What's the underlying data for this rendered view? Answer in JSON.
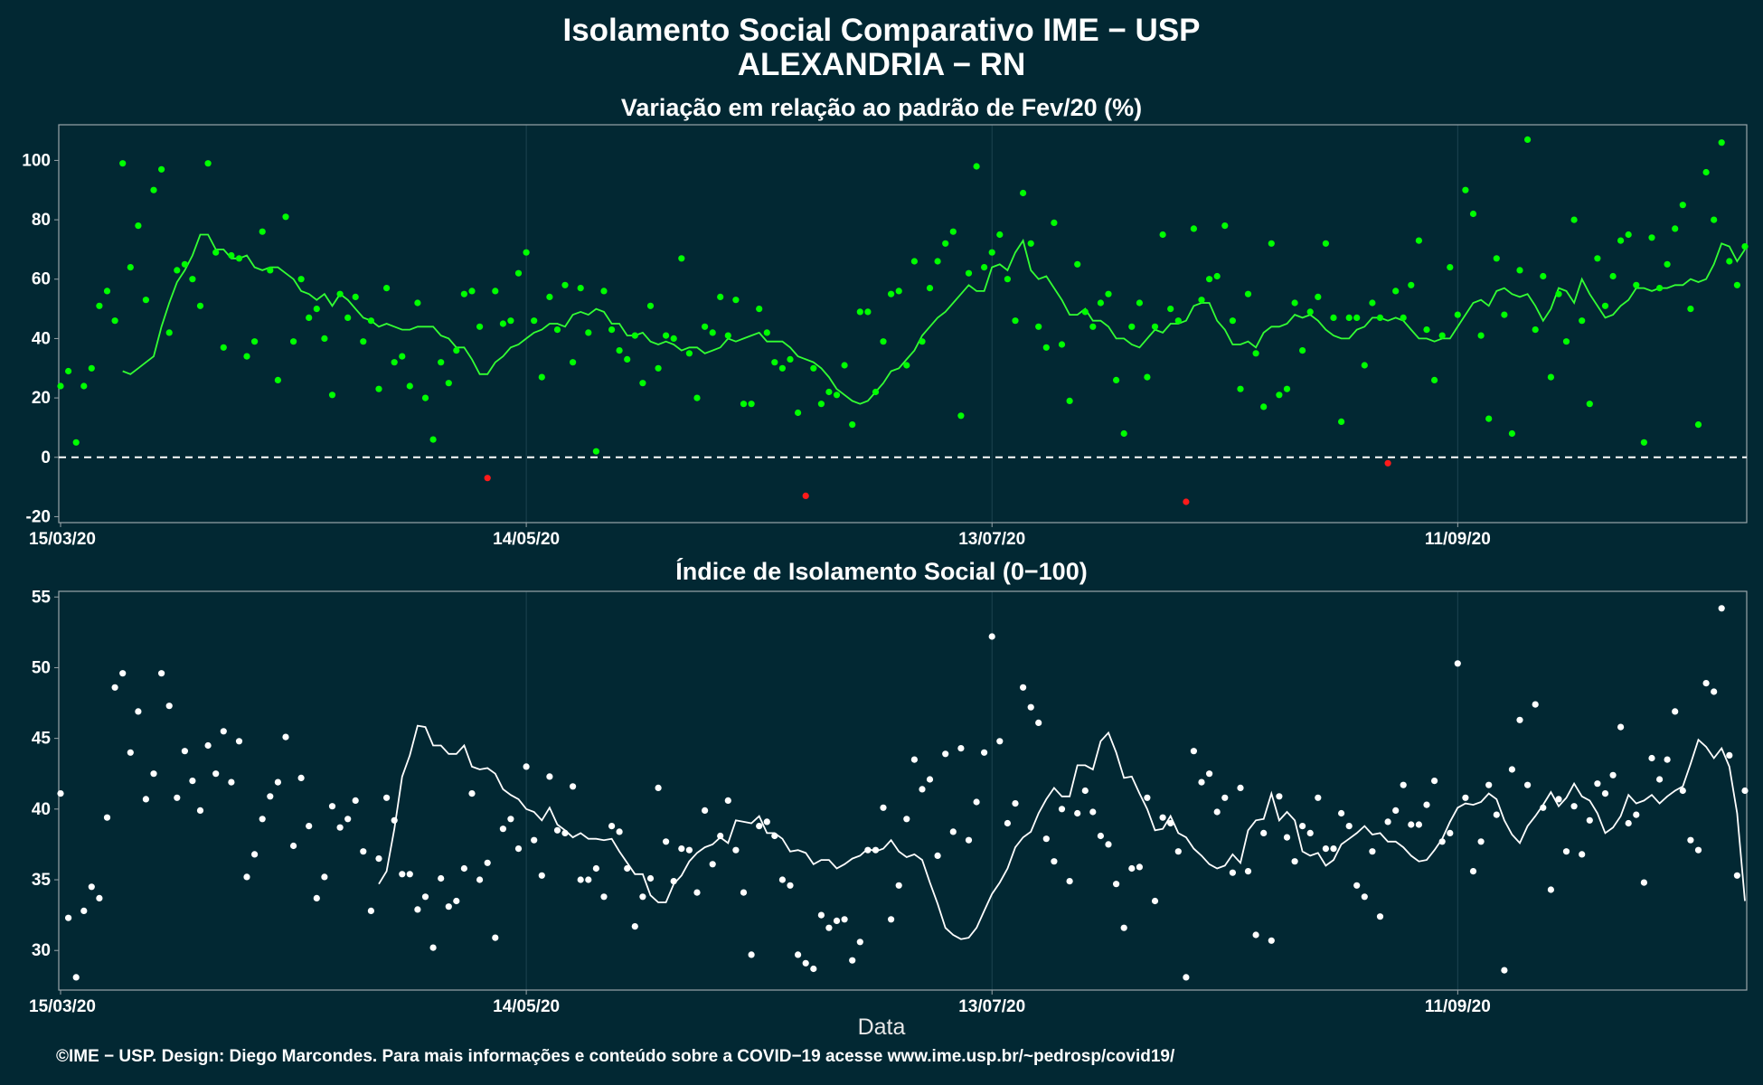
{
  "title": "Isolamento Social Comparativo IME − USP",
  "subtitle": "ALEXANDRIA − RN",
  "xlabel": "Data",
  "footer": "©IME − USP. Design: Diego Marcondes. Para mais informações e conteúdo sobre a COVID−19 acesse www.ime.usp.br/~pedrosp/covid19/",
  "colors": {
    "background": "#022833",
    "panel_border": "#9aa5aa",
    "grid": "#1c4450",
    "variation_points": "#00ff00",
    "variation_line": "#33ff33",
    "negative_points": "#ff1a1a",
    "index_points": "#ffffff",
    "index_line": "#ffffff",
    "zero_line": "#ffffff"
  },
  "chart_data": [
    {
      "type": "scatter",
      "title": "Variação em relação ao padrão de Fev/20 (%)",
      "xlabel": "Data",
      "ylabel": "",
      "x_start": "15/03/20",
      "x_end": "14/10/20",
      "xticks": [
        "15/03/20",
        "14/05/20",
        "13/07/20",
        "11/09/20"
      ],
      "ylim": [
        -22,
        112
      ],
      "yticks": [
        -20,
        0,
        20,
        40,
        60,
        80,
        100
      ],
      "reference_line": 0,
      "grid": true,
      "legend": "none",
      "series": [
        {
          "kind": "points",
          "color": "#00ff00",
          "negative_color": "#ff1a1a",
          "values": [
            24,
            29,
            5,
            24,
            30,
            51,
            56,
            46,
            99,
            64,
            78,
            53,
            90,
            97,
            42,
            63,
            65,
            60,
            51,
            99,
            69,
            37,
            68,
            67,
            34,
            39,
            76,
            63,
            26,
            81,
            39,
            60,
            47,
            50,
            40,
            21,
            55,
            47,
            54,
            39,
            46,
            23,
            57,
            32,
            34,
            24,
            52,
            20,
            6,
            32,
            25,
            36,
            55,
            56,
            44,
            -7,
            56,
            45,
            46,
            62,
            69,
            46,
            27,
            54,
            43,
            58,
            32,
            57,
            42,
            2,
            56,
            43,
            36,
            33,
            41,
            25,
            51,
            30,
            41,
            40,
            67,
            35,
            20,
            44,
            42,
            54,
            41,
            53,
            18,
            18,
            50,
            42,
            32,
            30,
            33,
            15,
            -13,
            30,
            18,
            22,
            21,
            31,
            11,
            49,
            49,
            22,
            39,
            55,
            56,
            31,
            66,
            39,
            57,
            66,
            72,
            76,
            14,
            62,
            98,
            64,
            69,
            75,
            60,
            46,
            89,
            72,
            44,
            37,
            79,
            38,
            19,
            65,
            49,
            44,
            52,
            55,
            26,
            8,
            44,
            52,
            27,
            44,
            75,
            50,
            46,
            -15,
            77,
            53,
            60,
            61,
            78,
            46,
            23,
            55,
            35,
            17,
            72,
            21,
            23,
            52,
            36,
            49,
            54,
            72,
            47,
            12,
            47,
            47,
            31,
            52,
            47,
            -2,
            56,
            47,
            58,
            73,
            43,
            26,
            41,
            64,
            48,
            90,
            82,
            41,
            13,
            67,
            48,
            8,
            63,
            107,
            43,
            61,
            27,
            55,
            39,
            80,
            46,
            18,
            67,
            51,
            61,
            73,
            75,
            58,
            5,
            74,
            57,
            65,
            77,
            85,
            50,
            11,
            96,
            80,
            106,
            66,
            58,
            71
          ]
        },
        {
          "kind": "moving_average",
          "color": "#33ff33",
          "values": [
            29,
            28,
            30,
            32,
            34,
            44,
            52,
            59,
            63,
            68,
            75,
            75,
            70,
            70,
            67,
            67,
            68,
            64,
            63,
            64,
            64,
            62,
            60,
            56,
            55,
            53,
            55,
            51,
            55,
            53,
            50,
            47,
            46,
            44,
            45,
            44,
            43,
            43,
            44,
            44,
            44,
            41,
            40,
            37,
            37,
            33,
            28,
            28,
            32,
            34,
            37,
            38,
            40,
            42,
            43,
            45,
            45,
            44,
            48,
            49,
            48,
            50,
            49,
            45,
            45,
            41,
            41,
            42,
            39,
            38,
            39,
            38,
            36,
            37,
            37,
            35,
            36,
            37,
            40,
            39,
            40,
            41,
            42,
            39,
            39,
            39,
            37,
            34,
            33,
            32,
            30,
            27,
            23,
            21,
            19,
            18,
            19,
            22,
            25,
            29,
            30,
            33,
            36,
            41,
            44,
            47,
            49,
            52,
            55,
            58,
            56,
            56,
            64,
            65,
            63,
            69,
            73,
            63,
            60,
            61,
            57,
            53,
            48,
            48,
            50,
            46,
            46,
            44,
            40,
            40,
            38,
            37,
            40,
            43,
            42,
            45,
            45,
            46,
            51,
            52,
            52,
            46,
            43,
            38,
            38,
            39,
            37,
            42,
            44,
            44,
            45,
            48,
            47,
            48,
            46,
            43,
            41,
            40,
            40,
            43,
            44,
            47,
            47,
            46,
            47,
            46,
            43,
            40,
            40,
            39,
            40,
            40,
            44,
            48,
            52,
            53,
            51,
            56,
            57,
            55,
            54,
            55,
            51,
            46,
            50,
            57,
            56,
            52,
            60,
            55,
            51,
            47,
            48,
            51,
            53,
            57,
            57,
            56,
            57,
            57,
            58,
            58,
            60,
            59,
            60,
            65,
            72,
            71,
            66,
            70
          ]
        }
      ]
    },
    {
      "type": "scatter",
      "title": "Índice de Isolamento Social (0−100)",
      "xlabel": "Data",
      "ylabel": "",
      "x_start": "15/03/20",
      "x_end": "14/10/20",
      "xticks": [
        "15/03/20",
        "14/05/20",
        "13/07/20",
        "11/09/20"
      ],
      "ylim": [
        27.2,
        55.4
      ],
      "yticks": [
        30,
        35,
        40,
        45,
        50,
        55
      ],
      "grid": true,
      "legend": "none",
      "series": [
        {
          "kind": "points",
          "color": "#ffffff",
          "values": [
            41.1,
            32.3,
            28.1,
            32.8,
            34.5,
            33.7,
            39.4,
            48.6,
            49.6,
            44.0,
            46.9,
            40.7,
            42.5,
            49.6,
            47.3,
            40.8,
            44.1,
            42.0,
            39.9,
            44.5,
            42.5,
            45.5,
            41.9,
            44.8,
            35.2,
            36.8,
            39.3,
            40.9,
            41.9,
            45.1,
            37.4,
            42.2,
            38.8,
            33.7,
            35.2,
            40.2,
            38.7,
            39.3,
            40.6,
            37.0,
            32.8,
            36.5,
            40.8,
            39.2,
            35.4,
            35.4,
            32.9,
            33.8,
            30.2,
            35.1,
            33.1,
            33.5,
            35.8,
            41.1,
            35.0,
            36.2,
            30.9,
            38.6,
            39.3,
            37.2,
            43.0,
            37.8,
            35.3,
            42.3,
            38.5,
            38.3,
            41.6,
            35.0,
            35.0,
            35.8,
            33.8,
            38.8,
            38.4,
            35.8,
            31.7,
            33.8,
            35.1,
            41.5,
            37.7,
            34.9,
            37.2,
            37.1,
            34.1,
            39.9,
            36.1,
            38.1,
            40.6,
            37.1,
            34.1,
            29.7,
            38.8,
            39.1,
            38.1,
            35.0,
            34.6,
            29.7,
            29.1,
            28.7,
            32.5,
            31.6,
            32.1,
            32.2,
            29.3,
            30.6,
            37.1,
            37.1,
            40.1,
            32.2,
            34.6,
            39.3,
            43.5,
            41.4,
            42.1,
            36.7,
            43.9,
            38.4,
            44.3,
            37.8,
            40.5,
            44.0,
            52.2,
            44.8,
            39.0,
            40.4,
            48.6,
            47.2,
            46.1,
            37.9,
            36.3,
            40.0,
            34.9,
            39.7,
            41.3,
            39.8,
            38.1,
            37.5,
            34.7,
            31.6,
            35.8,
            35.9,
            40.8,
            33.5,
            39.4,
            39.0,
            37.0,
            28.1,
            44.1,
            41.9,
            42.5,
            39.8,
            40.8,
            35.5,
            41.5,
            35.6,
            31.1,
            38.3,
            30.7,
            40.9,
            38.0,
            36.3,
            38.8,
            38.3,
            40.8,
            37.2,
            37.2,
            39.7,
            38.8,
            34.6,
            33.8,
            37.0,
            32.4,
            39.1,
            39.9,
            41.7,
            38.9,
            38.9,
            40.3,
            42.0,
            37.7,
            38.3,
            50.3,
            40.8,
            35.6,
            37.7,
            41.7,
            39.6,
            28.6,
            42.8,
            46.3,
            41.7,
            47.4,
            40.1,
            34.3,
            40.7,
            37.0,
            40.2,
            36.8,
            39.2,
            41.8,
            41.1,
            42.4,
            45.8,
            39.0,
            39.6,
            34.8,
            43.6,
            42.1,
            43.5,
            46.9,
            41.3,
            37.8,
            37.1,
            48.9,
            48.3,
            54.2,
            43.8,
            35.3,
            41.3
          ]
        },
        {
          "kind": "moving_average",
          "color": "#ffffff",
          "values": [
            34.7,
            35.6,
            38.6,
            42.3,
            43.8,
            45.9,
            45.8,
            44.5,
            44.5,
            43.9,
            43.9,
            44.5,
            43.0,
            42.8,
            42.9,
            42.5,
            41.4,
            41.0,
            40.7,
            40.0,
            39.8,
            39.2,
            40.1,
            38.9,
            38.5,
            38.0,
            38.3,
            37.9,
            37.9,
            37.8,
            37.9,
            37.0,
            36.2,
            35.4,
            35.4,
            33.9,
            33.4,
            33.4,
            34.7,
            35.3,
            36.3,
            36.9,
            37.3,
            37.5,
            38.0,
            37.6,
            39.2,
            39.1,
            39.0,
            39.5,
            38.3,
            38.3,
            37.9,
            37.0,
            37.1,
            36.9,
            36.1,
            36.4,
            36.4,
            35.8,
            36.1,
            36.5,
            36.7,
            37.2,
            37.0,
            37.2,
            37.8,
            37.0,
            36.6,
            36.8,
            36.4,
            34.8,
            33.3,
            31.6,
            31.1,
            30.8,
            30.9,
            31.6,
            32.8,
            34.0,
            34.8,
            35.8,
            37.3,
            38.0,
            38.4,
            39.7,
            40.7,
            41.5,
            40.9,
            40.9,
            43.1,
            43.1,
            42.8,
            44.8,
            45.4,
            44.0,
            42.2,
            42.3,
            41.1,
            40.0,
            38.5,
            38.6,
            39.5,
            38.3,
            38.0,
            37.2,
            36.7,
            36.1,
            35.8,
            36.0,
            36.8,
            36.2,
            38.5,
            39.2,
            39.3,
            41.1,
            39.2,
            39.8,
            39.2,
            37.0,
            36.7,
            36.9,
            36.0,
            36.4,
            37.5,
            37.9,
            38.3,
            38.8,
            38.2,
            38.3,
            37.7,
            37.7,
            37.3,
            36.7,
            36.3,
            36.4,
            37.1,
            37.9,
            39.1,
            40.1,
            40.4,
            40.3,
            40.5,
            41.1,
            40.7,
            39.2,
            38.2,
            37.6,
            38.8,
            39.5,
            40.3,
            41.2,
            40.2,
            40.8,
            41.8,
            40.9,
            40.6,
            39.7,
            38.3,
            38.7,
            39.5,
            41.0,
            40.4,
            40.6,
            41.0,
            40.4,
            40.9,
            41.3,
            41.6,
            43.2,
            44.9,
            44.4,
            43.6,
            44.3,
            43.0,
            39.7,
            33.5
          ]
        }
      ]
    }
  ]
}
